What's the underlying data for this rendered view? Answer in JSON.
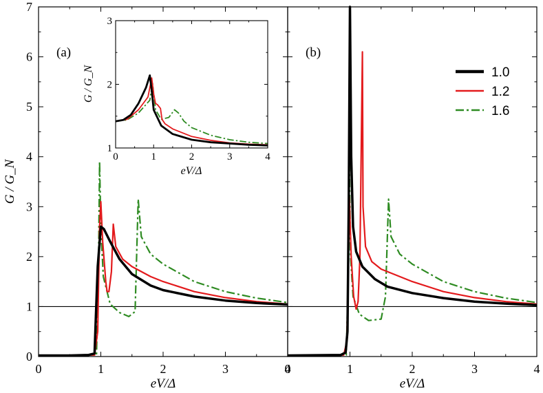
{
  "chart_data": [
    {
      "panel": "(a)",
      "type": "line",
      "xlabel": "eV/Δ",
      "ylabel": "G / G_N",
      "xlim": [
        0,
        4
      ],
      "ylim": [
        0,
        7
      ],
      "xticks": [
        "0",
        "1",
        "2",
        "3",
        "4"
      ],
      "yticks": [
        "0",
        "1",
        "2",
        "3",
        "4",
        "5",
        "6",
        "7"
      ],
      "reference_line": 1,
      "series": [
        {
          "name": "1.0",
          "color": "#000000",
          "style": "solid",
          "points": [
            [
              0,
              0.02
            ],
            [
              0.5,
              0.02
            ],
            [
              0.8,
              0.03
            ],
            [
              0.9,
              0.06
            ],
            [
              0.92,
              0.8
            ],
            [
              0.95,
              1.8
            ],
            [
              1.0,
              2.6
            ],
            [
              1.05,
              2.55
            ],
            [
              1.15,
              2.3
            ],
            [
              1.3,
              1.95
            ],
            [
              1.5,
              1.65
            ],
            [
              1.8,
              1.42
            ],
            [
              2.0,
              1.33
            ],
            [
              2.5,
              1.2
            ],
            [
              3.0,
              1.12
            ],
            [
              3.5,
              1.07
            ],
            [
              4.0,
              1.04
            ]
          ]
        },
        {
          "name": "1.2",
          "color": "#e31a1c",
          "style": "solid",
          "points": [
            [
              0,
              0.02
            ],
            [
              0.9,
              0.03
            ],
            [
              0.95,
              0.5
            ],
            [
              0.98,
              2.6
            ],
            [
              1.0,
              3.1
            ],
            [
              1.03,
              2.3
            ],
            [
              1.08,
              1.5
            ],
            [
              1.1,
              1.3
            ],
            [
              1.13,
              1.3
            ],
            [
              1.17,
              1.7
            ],
            [
              1.2,
              2.65
            ],
            [
              1.24,
              2.2
            ],
            [
              1.35,
              1.95
            ],
            [
              1.5,
              1.8
            ],
            [
              1.8,
              1.6
            ],
            [
              2.0,
              1.5
            ],
            [
              2.5,
              1.3
            ],
            [
              3.0,
              1.18
            ],
            [
              3.5,
              1.1
            ],
            [
              4.0,
              1.05
            ]
          ]
        },
        {
          "name": "1.6",
          "color": "#2e8b22",
          "style": "dashdot",
          "points": [
            [
              0,
              0.02
            ],
            [
              0.93,
              0.03
            ],
            [
              0.96,
              1.5
            ],
            [
              0.98,
              3.9
            ],
            [
              1.0,
              2.6
            ],
            [
              1.04,
              1.6
            ],
            [
              1.15,
              1.05
            ],
            [
              1.3,
              0.88
            ],
            [
              1.45,
              0.8
            ],
            [
              1.55,
              0.9
            ],
            [
              1.6,
              3.15
            ],
            [
              1.65,
              2.4
            ],
            [
              1.8,
              2.05
            ],
            [
              2.0,
              1.85
            ],
            [
              2.5,
              1.5
            ],
            [
              3.0,
              1.3
            ],
            [
              3.5,
              1.17
            ],
            [
              4.0,
              1.08
            ]
          ]
        }
      ]
    },
    {
      "panel": "(b)",
      "type": "line",
      "xlabel": "eV/Δ",
      "xlim": [
        0,
        4
      ],
      "ylim": [
        0,
        7
      ],
      "xticks": [
        "0",
        "1",
        "2",
        "3",
        "4"
      ],
      "reference_line": 1,
      "series": [
        {
          "name": "1.0",
          "color": "#000000",
          "style": "solid",
          "points": [
            [
              0,
              0.02
            ],
            [
              0.85,
              0.03
            ],
            [
              0.93,
              0.08
            ],
            [
              0.96,
              0.5
            ],
            [
              0.98,
              3.0
            ],
            [
              1.0,
              7.0
            ],
            [
              1.02,
              4.0
            ],
            [
              1.05,
              2.6
            ],
            [
              1.1,
              2.1
            ],
            [
              1.2,
              1.8
            ],
            [
              1.4,
              1.55
            ],
            [
              1.6,
              1.4
            ],
            [
              2.0,
              1.27
            ],
            [
              2.5,
              1.17
            ],
            [
              3.0,
              1.1
            ],
            [
              3.5,
              1.06
            ],
            [
              4.0,
              1.03
            ]
          ]
        },
        {
          "name": "1.2",
          "color": "#e31a1c",
          "style": "solid",
          "points": [
            [
              0,
              0.02
            ],
            [
              0.9,
              0.03
            ],
            [
              0.95,
              0.3
            ],
            [
              0.99,
              3.2
            ],
            [
              1.02,
              2.0
            ],
            [
              1.06,
              1.2
            ],
            [
              1.1,
              0.95
            ],
            [
              1.13,
              1.1
            ],
            [
              1.16,
              2.0
            ],
            [
              1.2,
              6.1
            ],
            [
              1.21,
              3.0
            ],
            [
              1.25,
              2.2
            ],
            [
              1.35,
              1.9
            ],
            [
              1.5,
              1.75
            ],
            [
              2.0,
              1.5
            ],
            [
              2.5,
              1.3
            ],
            [
              3.0,
              1.18
            ],
            [
              3.5,
              1.1
            ],
            [
              4.0,
              1.05
            ]
          ]
        },
        {
          "name": "1.6",
          "color": "#2e8b22",
          "style": "dashdot",
          "points": [
            [
              0,
              0.02
            ],
            [
              0.94,
              0.03
            ],
            [
              0.97,
              1.5
            ],
            [
              0.99,
              3.9
            ],
            [
              1.01,
              2.0
            ],
            [
              1.05,
              1.2
            ],
            [
              1.15,
              0.85
            ],
            [
              1.3,
              0.72
            ],
            [
              1.5,
              0.75
            ],
            [
              1.57,
              1.2
            ],
            [
              1.62,
              3.15
            ],
            [
              1.66,
              2.4
            ],
            [
              1.8,
              2.05
            ],
            [
              2.0,
              1.85
            ],
            [
              2.5,
              1.5
            ],
            [
              3.0,
              1.3
            ],
            [
              3.5,
              1.17
            ],
            [
              4.0,
              1.08
            ]
          ]
        }
      ]
    },
    {
      "panel": "inset",
      "type": "line",
      "xlabel": "eV/Δ",
      "ylabel": "G / G_N",
      "xlim": [
        0,
        4
      ],
      "ylim": [
        1,
        3
      ],
      "xticks": [
        "0",
        "1",
        "2",
        "3",
        "4"
      ],
      "yticks": [
        "1",
        "2",
        "3"
      ],
      "series": [
        {
          "name": "1.0",
          "color": "#000000",
          "style": "solid",
          "points": [
            [
              0,
              1.42
            ],
            [
              0.2,
              1.44
            ],
            [
              0.4,
              1.52
            ],
            [
              0.6,
              1.7
            ],
            [
              0.8,
              1.95
            ],
            [
              0.9,
              2.14
            ],
            [
              0.95,
              1.9
            ],
            [
              1.0,
              1.6
            ],
            [
              1.2,
              1.35
            ],
            [
              1.5,
              1.22
            ],
            [
              2.0,
              1.13
            ],
            [
              2.5,
              1.09
            ],
            [
              3.0,
              1.07
            ],
            [
              3.5,
              1.05
            ],
            [
              4.0,
              1.04
            ]
          ]
        },
        {
          "name": "1.2",
          "color": "#e31a1c",
          "style": "solid",
          "points": [
            [
              0,
              1.42
            ],
            [
              0.3,
              1.45
            ],
            [
              0.6,
              1.6
            ],
            [
              0.85,
              1.8
            ],
            [
              0.95,
              2.1
            ],
            [
              1.0,
              1.85
            ],
            [
              1.05,
              1.7
            ],
            [
              1.1,
              1.68
            ],
            [
              1.18,
              1.62
            ],
            [
              1.22,
              1.45
            ],
            [
              1.3,
              1.38
            ],
            [
              1.5,
              1.3
            ],
            [
              2.0,
              1.18
            ],
            [
              2.5,
              1.12
            ],
            [
              3.0,
              1.08
            ],
            [
              3.5,
              1.06
            ],
            [
              4.0,
              1.05
            ]
          ]
        },
        {
          "name": "1.6",
          "color": "#2e8b22",
          "style": "dashdot",
          "points": [
            [
              0,
              1.42
            ],
            [
              0.3,
              1.44
            ],
            [
              0.6,
              1.55
            ],
            [
              0.9,
              1.75
            ],
            [
              0.97,
              2.02
            ],
            [
              1.05,
              1.6
            ],
            [
              1.2,
              1.45
            ],
            [
              1.4,
              1.48
            ],
            [
              1.55,
              1.6
            ],
            [
              1.65,
              1.55
            ],
            [
              1.8,
              1.42
            ],
            [
              2.0,
              1.32
            ],
            [
              2.5,
              1.2
            ],
            [
              3.0,
              1.13
            ],
            [
              3.5,
              1.09
            ],
            [
              4.0,
              1.07
            ]
          ]
        }
      ]
    }
  ],
  "legend": {
    "entries": [
      {
        "label": "1.0",
        "color": "#000000",
        "style": "solid"
      },
      {
        "label": "1.2",
        "color": "#e31a1c",
        "style": "solid"
      },
      {
        "label": "1.6",
        "color": "#2e8b22",
        "style": "dashdot"
      }
    ]
  }
}
